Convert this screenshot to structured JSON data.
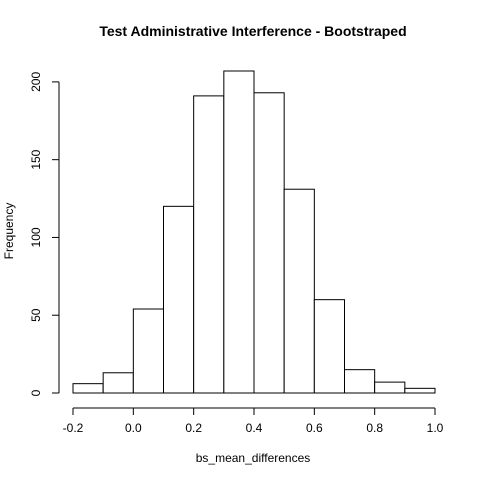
{
  "chart_data": {
    "type": "bar",
    "title": "Test Administrative Interference - Bootstraped",
    "xlabel": "bs_mean_differences",
    "ylabel": "Frequency",
    "bins": [
      {
        "start": -0.2,
        "end": -0.1,
        "count": 6
      },
      {
        "start": -0.1,
        "end": 0.0,
        "count": 13
      },
      {
        "start": 0.0,
        "end": 0.1,
        "count": 54
      },
      {
        "start": 0.1,
        "end": 0.2,
        "count": 120
      },
      {
        "start": 0.2,
        "end": 0.3,
        "count": 191
      },
      {
        "start": 0.3,
        "end": 0.4,
        "count": 207
      },
      {
        "start": 0.4,
        "end": 0.5,
        "count": 193
      },
      {
        "start": 0.5,
        "end": 0.6,
        "count": 131
      },
      {
        "start": 0.6,
        "end": 0.7,
        "count": 60
      },
      {
        "start": 0.7,
        "end": 0.8,
        "count": 15
      },
      {
        "start": 0.8,
        "end": 0.9,
        "count": 7
      },
      {
        "start": 0.9,
        "end": 1.0,
        "count": 3
      }
    ],
    "xlim": [
      -0.2,
      1.0
    ],
    "ylim": [
      0,
      207
    ],
    "x_ticks": [
      "-0.2",
      "0.0",
      "0.2",
      "0.4",
      "0.6",
      "0.8",
      "1.0"
    ],
    "y_ticks": [
      "0",
      "50",
      "100",
      "150",
      "200"
    ],
    "grid": false,
    "legend": "none"
  }
}
